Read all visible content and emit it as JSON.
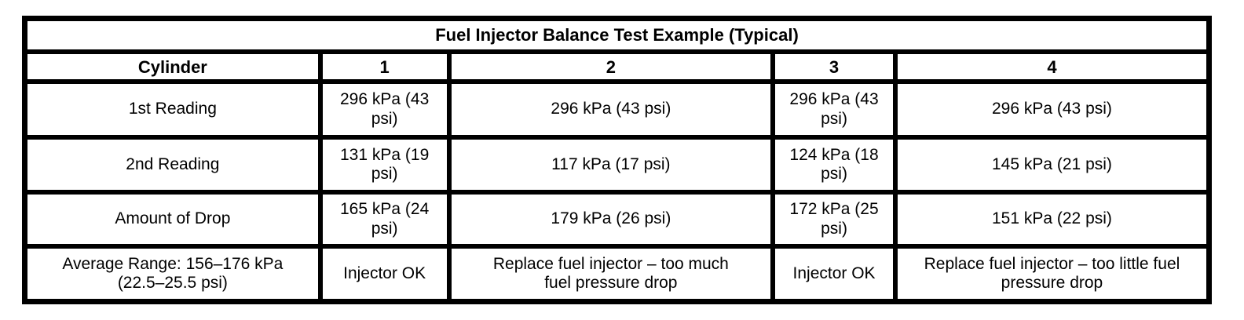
{
  "chart_data": {
    "type": "table",
    "title": "Fuel Injector Balance Test Example (Typical)",
    "columns": [
      "Cylinder",
      "1",
      "2",
      "3",
      "4"
    ],
    "rows": [
      [
        "1st Reading",
        "296 kPa (43 psi)",
        "296 kPa (43 psi)",
        "296 kPa (43 psi)",
        "296 kPa (43 psi)"
      ],
      [
        "2nd Reading",
        "131 kPa (19 psi)",
        "117 kPa (17 psi)",
        "124 kPa (18 psi)",
        "145 kPa (21 psi)"
      ],
      [
        "Amount of Drop",
        "165 kPa (24 psi)",
        "179 kPa (26 psi)",
        "172 kPa (25 psi)",
        "151 kPa (22 psi)"
      ],
      [
        "Average Range: 156–176 kPa (22.5–25.5 psi)",
        "Injector OK",
        "Replace fuel injector – too much fuel pressure drop",
        "Injector OK",
        "Replace fuel injector – too little fuel pressure drop"
      ]
    ],
    "numeric": {
      "cylinders": [
        1,
        2,
        3,
        4
      ],
      "first_reading_kpa": [
        296,
        296,
        296,
        296
      ],
      "first_reading_psi": [
        43,
        43,
        43,
        43
      ],
      "second_reading_kpa": [
        131,
        117,
        124,
        145
      ],
      "second_reading_psi": [
        19,
        17,
        18,
        21
      ],
      "drop_kpa": [
        165,
        179,
        172,
        151
      ],
      "drop_psi": [
        24,
        26,
        25,
        22
      ],
      "average_range_kpa": [
        156,
        176
      ],
      "average_range_psi": [
        22.5,
        25.5
      ]
    },
    "verdicts": [
      "Injector OK",
      "Replace fuel injector – too much fuel pressure drop",
      "Injector OK",
      "Replace fuel injector – too little fuel pressure drop"
    ]
  },
  "display": {
    "title": "Fuel Injector Balance Test Example (Typical)",
    "header": [
      "Cylinder",
      "1",
      "2",
      "3",
      "4"
    ],
    "cells": [
      [
        "1st Reading",
        "296 kPa (43\npsi)",
        "296 kPa (43 psi)",
        "296 kPa (43\npsi)",
        "296 kPa (43 psi)"
      ],
      [
        "2nd Reading",
        "131 kPa (19\npsi)",
        "117 kPa (17 psi)",
        "124 kPa (18\npsi)",
        "145 kPa (21 psi)"
      ],
      [
        "Amount of Drop",
        "165 kPa (24\npsi)",
        "179 kPa (26 psi)",
        "172 kPa (25\npsi)",
        "151 kPa (22 psi)"
      ],
      [
        "Average Range: 156–176 kPa\n(22.5–25.5 psi)",
        "Injector OK",
        "Replace fuel injector – too much\nfuel pressure drop",
        "Injector OK",
        "Replace fuel injector – too little fuel\npressure drop"
      ]
    ]
  },
  "colors": {
    "border": "#000000",
    "text": "#000000",
    "background": "#ffffff"
  }
}
